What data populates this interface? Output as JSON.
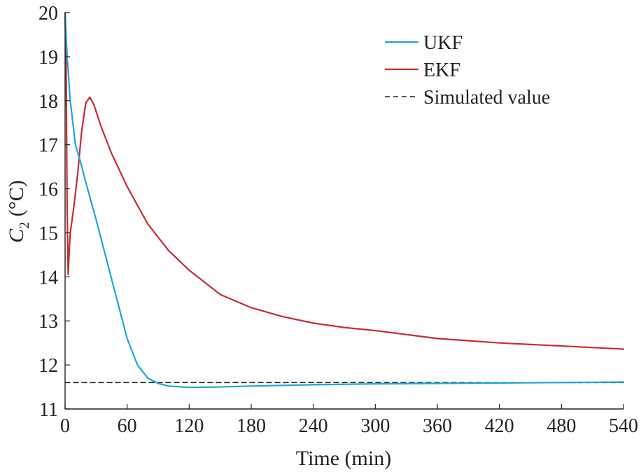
{
  "chart_data": {
    "type": "line",
    "title": "",
    "xlabel": "Time (min)",
    "ylabel": {
      "main": "C",
      "subscript": "2",
      "unit": " (°C)"
    },
    "xlim": [
      0,
      540
    ],
    "ylim": [
      11,
      20
    ],
    "xticks": [
      0,
      60,
      120,
      180,
      240,
      300,
      360,
      420,
      480,
      540
    ],
    "yticks": [
      11,
      12,
      13,
      14,
      15,
      16,
      17,
      18,
      19,
      20
    ],
    "grid": false,
    "legend_position": "top-right",
    "series": [
      {
        "name": "UKF",
        "color": "#1aa7d8",
        "line_style": "solid",
        "x": [
          0,
          2,
          5,
          10,
          15,
          20,
          30,
          40,
          50,
          60,
          70,
          80,
          90,
          100,
          120,
          150,
          180,
          240,
          300,
          360,
          420,
          480,
          540
        ],
        "y": [
          20,
          19.0,
          18.0,
          17.0,
          16.6,
          16.15,
          15.3,
          14.4,
          13.5,
          12.6,
          12.0,
          11.7,
          11.58,
          11.52,
          11.49,
          11.5,
          11.52,
          11.55,
          11.57,
          11.58,
          11.59,
          11.6,
          11.61
        ]
      },
      {
        "name": "EKF",
        "color": "#cc2a2e",
        "line_style": "solid",
        "x": [
          0,
          1,
          2,
          3,
          4,
          5,
          8,
          12,
          16,
          20,
          24,
          28,
          35,
          45,
          60,
          80,
          100,
          120,
          150,
          180,
          210,
          240,
          270,
          300,
          360,
          420,
          480,
          540
        ],
        "y": [
          20,
          18.8,
          15.5,
          14.05,
          14.6,
          15.0,
          15.5,
          16.3,
          17.3,
          17.95,
          18.08,
          17.9,
          17.4,
          16.8,
          16.05,
          15.2,
          14.6,
          14.15,
          13.6,
          13.3,
          13.1,
          12.95,
          12.85,
          12.78,
          12.6,
          12.5,
          12.43,
          12.36
        ]
      },
      {
        "name": "Simulated value",
        "color": "#222222",
        "line_style": "dashed",
        "x": [
          0,
          540
        ],
        "y": [
          11.6,
          11.6
        ]
      }
    ]
  }
}
